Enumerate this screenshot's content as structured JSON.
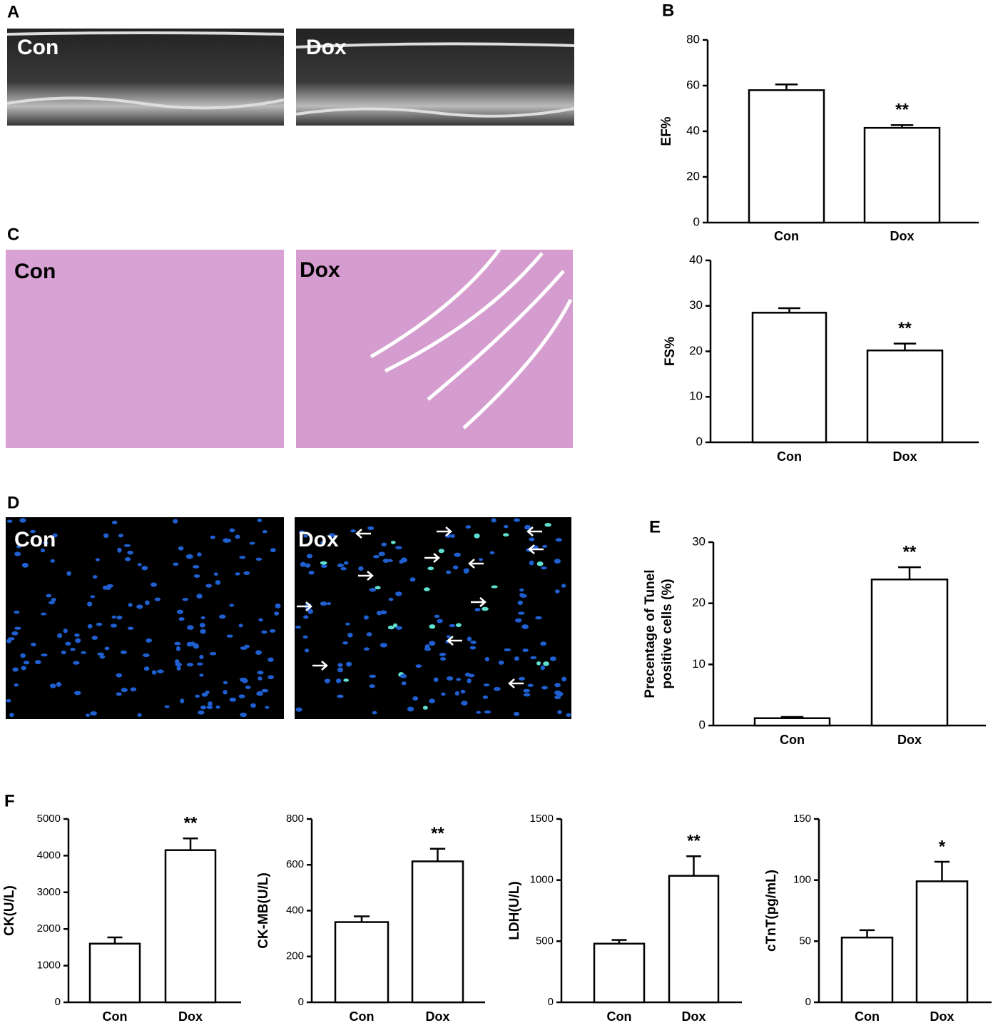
{
  "panel_labels": [
    "A",
    "B",
    "C",
    "D",
    "E",
    "F"
  ],
  "image_labels": {
    "A": [
      "Con",
      "Dox"
    ],
    "C": [
      "Con",
      "Dox"
    ],
    "D": [
      "Con",
      "Dox"
    ]
  },
  "chart_data": [
    {
      "type": "bar",
      "ylabel": [
        "EF%"
      ],
      "categories": [
        "Con",
        "Dox"
      ],
      "values": [
        58,
        41.5
      ],
      "errors": [
        2.5,
        1.2
      ],
      "annotations": [
        null,
        "**"
      ],
      "ylim": [
        0,
        80
      ],
      "yticks": [
        0,
        20,
        40,
        60,
        80
      ],
      "color": "#ffffff"
    },
    {
      "type": "bar",
      "ylabel": [
        "FS%"
      ],
      "categories": [
        "Con",
        "Dox"
      ],
      "values": [
        28.5,
        20.2
      ],
      "errors": [
        1,
        1.5
      ],
      "annotations": [
        null,
        "**"
      ],
      "ylim": [
        0,
        40
      ],
      "yticks": [
        0,
        10,
        20,
        30,
        40
      ],
      "color": "#ffffff"
    },
    {
      "type": "bar",
      "ylabel": [
        "Precentage of Tunel",
        "positive cells (%)"
      ],
      "categories": [
        "Con",
        "Dox"
      ],
      "values": [
        1.2,
        23.9
      ],
      "errors": [
        0.2,
        2
      ],
      "annotations": [
        null,
        "**"
      ],
      "ylim": [
        0,
        30
      ],
      "yticks": [
        0,
        10,
        20,
        30
      ],
      "color": "#ffffff"
    },
    {
      "type": "bar",
      "ylabel": [
        "CK(U/L)"
      ],
      "categories": [
        "Con",
        "Dox"
      ],
      "values": [
        1600,
        4150
      ],
      "errors": [
        170,
        320
      ],
      "annotations": [
        null,
        "**"
      ],
      "ylim": [
        0,
        5000
      ],
      "yticks": [
        0,
        1000,
        2000,
        3000,
        4000,
        5000
      ],
      "color": "#ffffff"
    },
    {
      "type": "bar",
      "ylabel": [
        "CK-MB(U/L)"
      ],
      "categories": [
        "Con",
        "Dox"
      ],
      "values": [
        350,
        615
      ],
      "errors": [
        25,
        55
      ],
      "annotations": [
        null,
        "**"
      ],
      "ylim": [
        0,
        800
      ],
      "yticks": [
        0,
        200,
        400,
        600,
        800
      ],
      "color": "#ffffff"
    },
    {
      "type": "bar",
      "ylabel": [
        "LDH(U/L)"
      ],
      "categories": [
        "Con",
        "Dox"
      ],
      "values": [
        480,
        1035
      ],
      "errors": [
        30,
        160
      ],
      "annotations": [
        null,
        "**"
      ],
      "ylim": [
        0,
        1500
      ],
      "yticks": [
        0,
        500,
        1000,
        1500
      ],
      "color": "#ffffff"
    },
    {
      "type": "bar",
      "ylabel": [
        "cTnT(pg/mL)"
      ],
      "categories": [
        "Con",
        "Dox"
      ],
      "values": [
        53,
        99
      ],
      "errors": [
        6,
        16
      ],
      "annotations": [
        null,
        "*"
      ],
      "ylim": [
        0,
        150
      ],
      "yticks": [
        0,
        50,
        100,
        150
      ],
      "color": "#ffffff"
    }
  ]
}
